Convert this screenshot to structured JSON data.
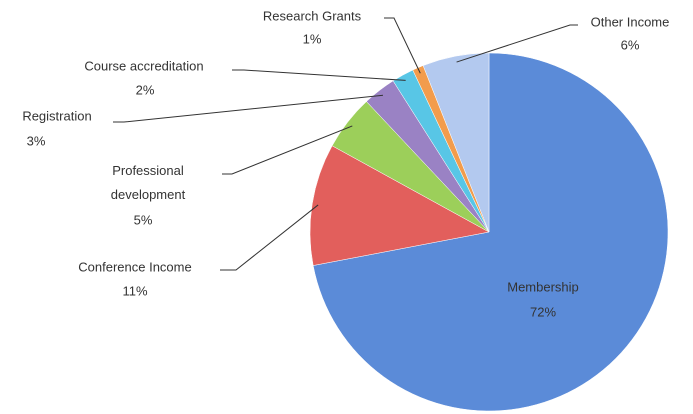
{
  "chart_data": {
    "type": "pie",
    "categories": [
      "Membership",
      "Conference Income",
      "Professional development",
      "Registration",
      "Course accreditation",
      "Research Grants",
      "Other Income"
    ],
    "values": [
      72,
      11,
      5,
      3,
      2,
      1,
      6
    ],
    "value_labels": [
      "72%",
      "11%",
      "5%",
      "3%",
      "2%",
      "1%",
      "6%"
    ],
    "colors": [
      "#5b8bd8",
      "#e25f5c",
      "#9ccf5a",
      "#9a82c4",
      "#58c6e6",
      "#f29c4c",
      "#b3c9ef"
    ]
  }
}
